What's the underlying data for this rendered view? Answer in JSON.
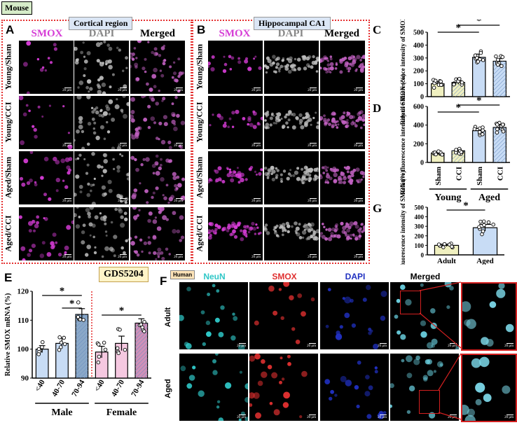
{
  "tags": {
    "mouse": "Mouse",
    "human": "Human",
    "gds": "GDS5204"
  },
  "letters": {
    "A": "A",
    "B": "B",
    "C": "C",
    "D": "D",
    "E": "E",
    "F": "F",
    "G": "G"
  },
  "regions": {
    "cortical": "Cortical region",
    "hippocampal": "Hippocampal CA1"
  },
  "micro_cols": [
    "SMOX",
    "DAPI",
    "Merged"
  ],
  "micro_rows": [
    "Young/Sham",
    "Young/CCI",
    "Aged/Sham",
    "Aged/CCI"
  ],
  "scale_bar": "20 μm",
  "colors": {
    "smox": "#d63cd6",
    "dapi": "#bbbbbb",
    "neun": "#2fc7c7",
    "smox_human": "#e03030",
    "dapi_human": "#2030c0",
    "young_bar": "#f0f0c0",
    "aged_bar": "#c8dcf5",
    "red_dash": "#e53030"
  },
  "f_cols": [
    "NeuN",
    "SMOX",
    "DAPI",
    "Merged"
  ],
  "f_rows": [
    "Adult",
    "Aged"
  ],
  "chart_data": [
    {
      "panel": "C",
      "type": "bar",
      "ylabel": "Relative fluorescence intensity of SMOX (%)",
      "ylim": [
        0,
        500
      ],
      "yticks": [
        0,
        100,
        200,
        300,
        400,
        500
      ],
      "bars": [
        {
          "value": 100,
          "err": 15,
          "fill": "#f0f0c0"
        },
        {
          "value": 110,
          "err": 15,
          "fill": "#f0f0c0"
        },
        {
          "value": 305,
          "err": 25,
          "fill": "#c8dcf5"
        },
        {
          "value": 275,
          "err": 20,
          "fill": "#c8dcf5"
        }
      ],
      "sig": [
        "*",
        "*"
      ]
    },
    {
      "panel": "D",
      "type": "bar",
      "ylabel": "Relative fluorescence intensity of SMOX (%)",
      "ylim": [
        0,
        600
      ],
      "yticks": [
        0,
        200,
        400,
        600
      ],
      "categories": [
        "Sham",
        "CCI",
        "Sham",
        "CCI"
      ],
      "groups": [
        "Young",
        "Aged"
      ],
      "bars": [
        {
          "value": 100,
          "err": 12,
          "fill": "#f0f0c0"
        },
        {
          "value": 125,
          "err": 18,
          "fill": "#f0f0c0"
        },
        {
          "value": 340,
          "err": 25,
          "fill": "#c8dcf5"
        },
        {
          "value": 375,
          "err": 28,
          "fill": "#c8dcf5"
        }
      ],
      "sig": [
        "*",
        "*"
      ]
    },
    {
      "panel": "G",
      "type": "bar",
      "ylabel": "Relative fluorescence intensity of SMOX (%)",
      "ylim": [
        0,
        500
      ],
      "yticks": [
        0,
        100,
        200,
        300,
        400,
        500
      ],
      "categories": [
        "Adult",
        "Aged"
      ],
      "bars": [
        {
          "value": 100,
          "err": 12,
          "fill": "#f0f0c0"
        },
        {
          "value": 285,
          "err": 35,
          "fill": "#c8dcf5"
        }
      ],
      "sig": [
        "*"
      ]
    },
    {
      "panel": "E",
      "type": "bar",
      "ylabel": "Relative SMOX mRNA (%)",
      "ylim": [
        90,
        120
      ],
      "yticks": [
        90,
        100,
        110,
        120
      ],
      "categories": [
        "<40",
        "40-70",
        "70-94",
        "<40",
        "40-70",
        "70-94"
      ],
      "groups": [
        "Male",
        "Female"
      ],
      "bars": [
        {
          "value": 100,
          "err": 1.2
        },
        {
          "value": 102,
          "err": 1.8
        },
        {
          "value": 112,
          "err": 2.0
        },
        {
          "value": 99,
          "err": 2.0
        },
        {
          "value": 102,
          "err": 2.5
        },
        {
          "value": 109,
          "err": 1.5
        }
      ],
      "sig": [
        "*",
        "*",
        "*"
      ]
    }
  ]
}
